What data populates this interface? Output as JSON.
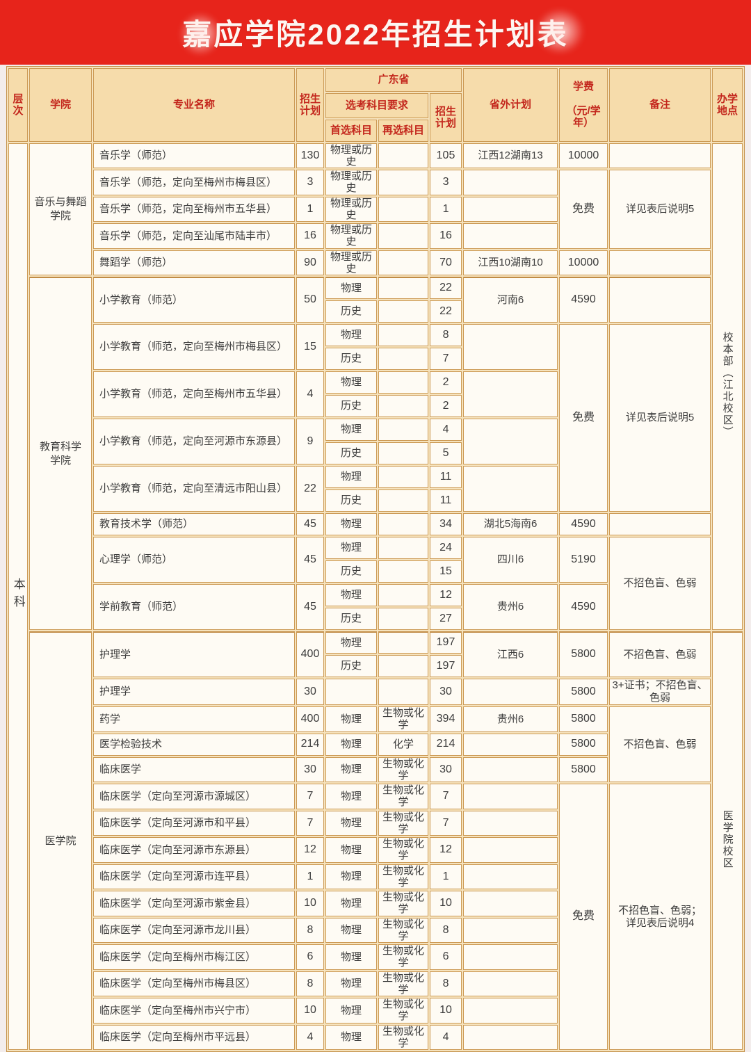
{
  "title": "嘉应学院2022年招生计划表",
  "colors": {
    "banner_red": "#e7241b",
    "header_text_red": "#c3261c",
    "border_tan": "#cc9a55",
    "header_bg": "#f6dcab",
    "cell_bg": "#fefbf4",
    "page_bg": "#f3edec"
  },
  "header": {
    "level": "层次",
    "college": "学院",
    "major": "专业名称",
    "plan": "招生\n计划",
    "guangdong": "广东省",
    "subject_req": "选考科目要求",
    "first_subject": "首选科目",
    "second_subject": "再选科目",
    "gd_plan": "招生\n计划",
    "province_plan": "省外计划",
    "tuition_line1": "学费",
    "tuition_line2": "（元/学年）",
    "remark": "备注",
    "location": "办学\n地点"
  },
  "majors": [
    {
      "name": "音乐学（师范）",
      "plan": "130",
      "subs": [
        {
          "first": "物理或历史",
          "second": "",
          "gd": "105"
        }
      ],
      "province": "江西12湖南13",
      "level": {
        "text": "本科",
        "span": 36
      },
      "college": {
        "text": "音乐与舞蹈\n学院",
        "span": 5
      },
      "tuition": {
        "text": "10000",
        "span": 1
      },
      "remark": {
        "text": "",
        "span": 1
      },
      "location": {
        "text": "校本部（江北校区）",
        "span": 20
      }
    },
    {
      "name": "音乐学（师范，定向至梅州市梅县区）",
      "plan": "3",
      "subs": [
        {
          "first": "物理或历史",
          "second": "",
          "gd": "3"
        }
      ],
      "province": "",
      "tuition": {
        "text": "免费",
        "span": 3
      },
      "remark": {
        "text": "详见表后说明5",
        "span": 3
      }
    },
    {
      "name": "音乐学（师范，定向至梅州市五华县）",
      "plan": "1",
      "subs": [
        {
          "first": "物理或历史",
          "second": "",
          "gd": "1"
        }
      ],
      "province": ""
    },
    {
      "name": "音乐学（师范，定向至汕尾市陆丰市）",
      "plan": "16",
      "subs": [
        {
          "first": "物理或历史",
          "second": "",
          "gd": "16"
        }
      ],
      "province": ""
    },
    {
      "name": "舞蹈学（师范）",
      "plan": "90",
      "subs": [
        {
          "first": "物理或历史",
          "second": "",
          "gd": "70"
        }
      ],
      "province": "江西10湖南10",
      "tuition": {
        "text": "10000",
        "span": 1
      },
      "remark": {
        "text": "",
        "span": 1
      }
    },
    {
      "name": "小学教育（师范）",
      "plan": "50",
      "subs": [
        {
          "first": "物理",
          "second": "",
          "gd": "22"
        },
        {
          "first": "历史",
          "second": "",
          "gd": "22"
        }
      ],
      "province": "河南6",
      "college": {
        "text": "教育科学\n学院",
        "span": 15
      },
      "tuition": {
        "text": "4590",
        "span": 2
      },
      "remark": {
        "text": "",
        "span": 2
      }
    },
    {
      "name": "小学教育（师范，定向至梅州市梅县区）",
      "plan": "15",
      "subs": [
        {
          "first": "物理",
          "second": "",
          "gd": "8"
        },
        {
          "first": "历史",
          "second": "",
          "gd": "7"
        }
      ],
      "province": "",
      "tuition": {
        "text": "免费",
        "span": 8
      },
      "remark": {
        "text": "详见表后说明5",
        "span": 8
      }
    },
    {
      "name": "小学教育（师范，定向至梅州市五华县）",
      "plan": "4",
      "subs": [
        {
          "first": "物理",
          "second": "",
          "gd": "2"
        },
        {
          "first": "历史",
          "second": "",
          "gd": "2"
        }
      ],
      "province": ""
    },
    {
      "name": "小学教育（师范，定向至河源市东源县）",
      "plan": "9",
      "subs": [
        {
          "first": "物理",
          "second": "",
          "gd": "4"
        },
        {
          "first": "历史",
          "second": "",
          "gd": "5"
        }
      ],
      "province": ""
    },
    {
      "name": "小学教育（师范，定向至清远市阳山县）",
      "plan": "22",
      "subs": [
        {
          "first": "物理",
          "second": "",
          "gd": "11"
        },
        {
          "first": "历史",
          "second": "",
          "gd": "11"
        }
      ],
      "province": ""
    },
    {
      "name": "教育技术学（师范）",
      "plan": "45",
      "subs": [
        {
          "first": "物理",
          "second": "",
          "gd": "34"
        }
      ],
      "province": "湖北5海南6",
      "tuition": {
        "text": "4590",
        "span": 1
      },
      "remark": {
        "text": "",
        "span": 1
      }
    },
    {
      "name": "心理学（师范）",
      "plan": "45",
      "subs": [
        {
          "first": "物理",
          "second": "",
          "gd": "24"
        },
        {
          "first": "历史",
          "second": "",
          "gd": "15"
        }
      ],
      "province": "四川6",
      "tuition": {
        "text": "5190",
        "span": 2
      },
      "remark": {
        "text": "不招色盲、色弱",
        "span": 4
      }
    },
    {
      "name": "学前教育（师范）",
      "plan": "45",
      "subs": [
        {
          "first": "物理",
          "second": "",
          "gd": "12"
        },
        {
          "first": "历史",
          "second": "",
          "gd": "27"
        }
      ],
      "province": "贵州6",
      "tuition": {
        "text": "4590",
        "span": 2
      }
    },
    {
      "name": "护理学",
      "plan": "400",
      "subs": [
        {
          "first": "物理",
          "second": "",
          "gd": "197"
        },
        {
          "first": "历史",
          "second": "",
          "gd": "197"
        }
      ],
      "province": "江西6",
      "college": {
        "text": "医学院",
        "span": 16
      },
      "tuition": {
        "text": "5800",
        "span": 2
      },
      "remark": {
        "text": "不招色盲、色弱",
        "span": 2
      },
      "location": {
        "text": "医学院校区",
        "span": 16
      }
    },
    {
      "name": "护理学",
      "plan": "30",
      "subs": [
        {
          "first": "",
          "second": "",
          "gd": "30"
        }
      ],
      "province": "",
      "tuition": {
        "text": "5800",
        "span": 1
      },
      "remark": {
        "text": "3+证书；不招色盲、\n色弱",
        "span": 1
      }
    },
    {
      "name": "药学",
      "plan": "400",
      "subs": [
        {
          "first": "物理",
          "second": "生物或化学",
          "gd": "394"
        }
      ],
      "province": "贵州6",
      "tuition": {
        "text": "5800",
        "span": 1
      },
      "remark": {
        "text": "不招色盲、色弱",
        "span": 3
      }
    },
    {
      "name": "医学检验技术",
      "plan": "214",
      "subs": [
        {
          "first": "物理",
          "second": "化学",
          "gd": "214"
        }
      ],
      "province": "",
      "tuition": {
        "text": "5800",
        "span": 1
      }
    },
    {
      "name": "临床医学",
      "plan": "30",
      "subs": [
        {
          "first": "物理",
          "second": "生物或化学",
          "gd": "30"
        }
      ],
      "province": "",
      "tuition": {
        "text": "5800",
        "span": 1
      }
    },
    {
      "name": "临床医学（定向至河源市源城区）",
      "plan": "7",
      "subs": [
        {
          "first": "物理",
          "second": "生物或化学",
          "gd": "7"
        }
      ],
      "province": "",
      "tuition": {
        "text": "免费",
        "span": 10
      },
      "remark": {
        "text": "不招色盲、色弱；\n详见表后说明4",
        "span": 10
      }
    },
    {
      "name": "临床医学（定向至河源市和平县）",
      "plan": "7",
      "subs": [
        {
          "first": "物理",
          "second": "生物或化学",
          "gd": "7"
        }
      ],
      "province": ""
    },
    {
      "name": "临床医学（定向至河源市东源县）",
      "plan": "12",
      "subs": [
        {
          "first": "物理",
          "second": "生物或化学",
          "gd": "12"
        }
      ],
      "province": ""
    },
    {
      "name": "临床医学（定向至河源市连平县）",
      "plan": "1",
      "subs": [
        {
          "first": "物理",
          "second": "生物或化学",
          "gd": "1"
        }
      ],
      "province": ""
    },
    {
      "name": "临床医学（定向至河源市紫金县）",
      "plan": "10",
      "subs": [
        {
          "first": "物理",
          "second": "生物或化学",
          "gd": "10"
        }
      ],
      "province": ""
    },
    {
      "name": "临床医学（定向至河源市龙川县）",
      "plan": "8",
      "subs": [
        {
          "first": "物理",
          "second": "生物或化学",
          "gd": "8"
        }
      ],
      "province": ""
    },
    {
      "name": "临床医学（定向至梅州市梅江区）",
      "plan": "6",
      "subs": [
        {
          "first": "物理",
          "second": "生物或化学",
          "gd": "6"
        }
      ],
      "province": ""
    },
    {
      "name": "临床医学（定向至梅州市梅县区）",
      "plan": "8",
      "subs": [
        {
          "first": "物理",
          "second": "生物或化学",
          "gd": "8"
        }
      ],
      "province": ""
    },
    {
      "name": "临床医学（定向至梅州市兴宁市）",
      "plan": "10",
      "subs": [
        {
          "first": "物理",
          "second": "生物或化学",
          "gd": "10"
        }
      ],
      "province": ""
    },
    {
      "name": "临床医学（定向至梅州市平远县）",
      "plan": "4",
      "subs": [
        {
          "first": "物理",
          "second": "生物或化学",
          "gd": "4"
        }
      ],
      "province": ""
    }
  ]
}
